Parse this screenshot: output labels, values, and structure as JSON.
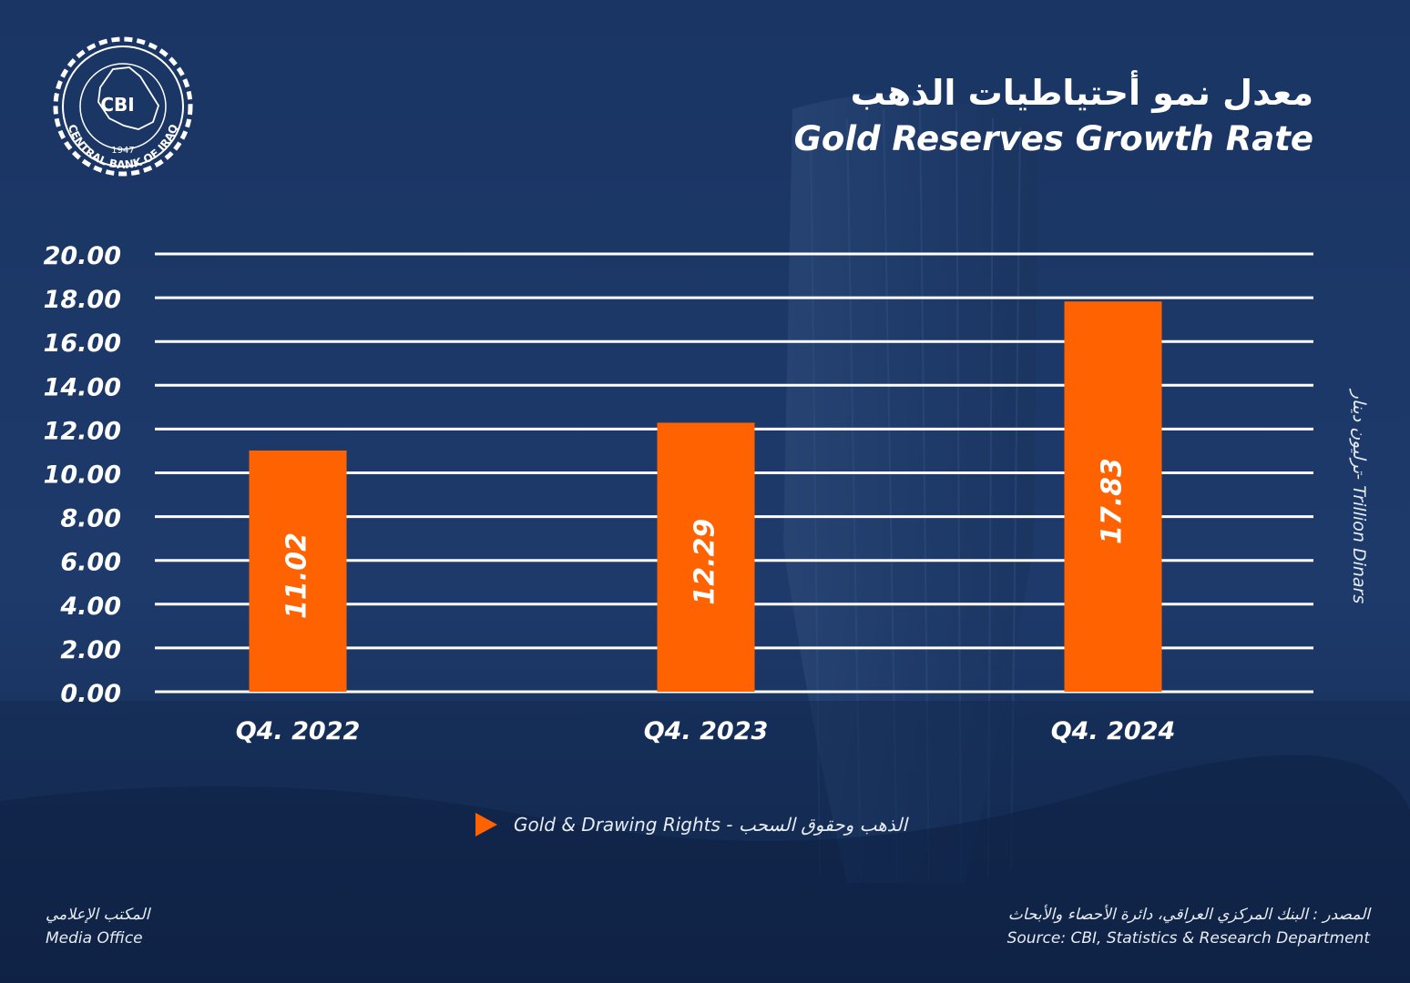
{
  "header": {
    "title_ar": "معدل نمو أحتياطيات الذهب",
    "title_en": "Gold Reserves Growth Rate"
  },
  "logo": {
    "text": "CBI",
    "year": "1947",
    "ring_text": "CENTRAL BANK OF IRAQ",
    "icon": "cbi-logo-icon"
  },
  "colors": {
    "background": "#1a3563",
    "bar": "#ff6200",
    "gridline": "#ffffff"
  },
  "unit_label": "ترليون دينار- Trillion Dinars",
  "legend": {
    "label": "الذهب وحقوق السحب - Gold & Drawing Rights",
    "marker": "triangle-right-icon"
  },
  "footer": {
    "left_ar": "المكتب الإعلامي",
    "left_en": "Media Office",
    "right_ar": "المصدر : البنك المركزي العراقي، دائرة الأحصاء والأبحاث",
    "right_en": "Source: CBI, Statistics & Research Department"
  },
  "chart_data": {
    "type": "bar",
    "categories": [
      "Q4. 2022",
      "Q4. 2023",
      "Q4. 2024"
    ],
    "series": [
      {
        "name": "الذهب وحقوق السحب - Gold & Drawing Rights",
        "values": [
          11.02,
          12.29,
          17.83
        ]
      }
    ],
    "value_labels": [
      "11.02",
      "12.29",
      "17.83"
    ],
    "ylabel": "ترليون دينار- Trillion Dinars",
    "ylim": [
      0,
      20
    ],
    "yticks": [
      "0.00",
      "2.00",
      "4.00",
      "6.00",
      "8.00",
      "10.00",
      "12.00",
      "14.00",
      "16.00",
      "18.00",
      "20.00"
    ],
    "grid": true,
    "legend_position": "bottom-center"
  }
}
